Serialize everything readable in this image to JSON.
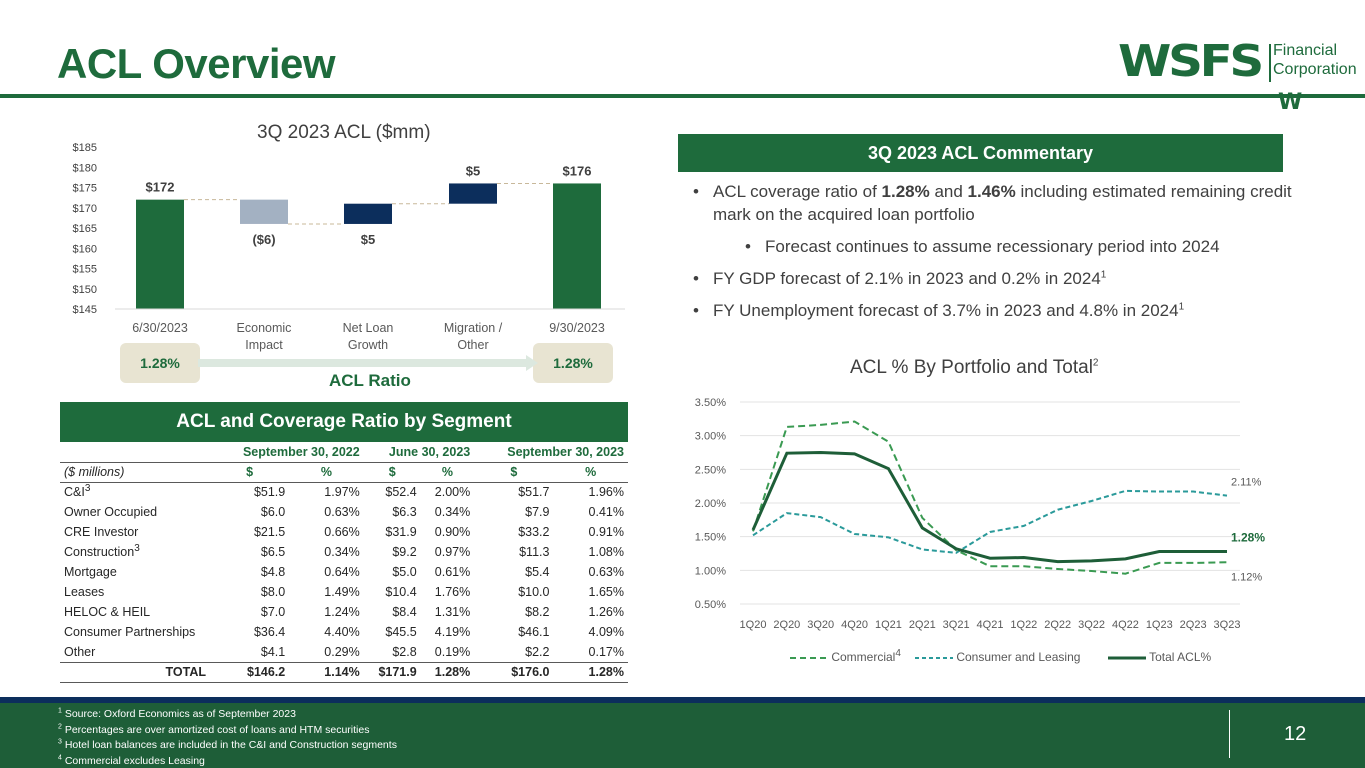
{
  "page": {
    "title": "ACL Overview",
    "page_number": "12",
    "brand_color": "#1e6b3c",
    "navy_color": "#0c2e5c"
  },
  "logo": {
    "word": "WSFS",
    "line1": "Financial",
    "line2": "Corporation",
    "mark": "W"
  },
  "waterfall": {
    "title": "3Q 2023 ACL ($mm)",
    "ratio_start": "1.28%",
    "ratio_end": "1.28%",
    "ratio_label": "ACL Ratio"
  },
  "commentary": {
    "header": "3Q 2023 ACL Commentary",
    "b1_pre": "ACL coverage ratio of ",
    "b1_v1": "1.28%",
    "b1_mid": " and ",
    "b1_v2": "1.46%",
    "b1_post": " including estimated remaining credit mark on the acquired loan portfolio",
    "b2": "Forecast continues to assume recessionary period into 2024",
    "b3": "FY GDP forecast of 2.1% in 2023 and 0.2% in 2024",
    "b3_sup": "1",
    "b4": "FY Unemployment forecast of 3.7% in 2023 and 4.8% in 2024",
    "b4_sup": "1"
  },
  "line_chart_title": "ACL % By Portfolio and Total",
  "line_chart_title_sup": "2",
  "table": {
    "header": "ACL and Coverage Ratio by Segment",
    "periods": [
      "September 30, 2022",
      "June 30, 2023",
      "September 30, 2023"
    ],
    "units_label": "($ millions)",
    "dollar": "$",
    "pct": "%",
    "rows": [
      {
        "label": "C&I",
        "sup": "3",
        "v": [
          "$51.9",
          "1.97%",
          "$52.4",
          "2.00%",
          "$51.7",
          "1.96%"
        ]
      },
      {
        "label": "Owner Occupied",
        "sup": "",
        "v": [
          "$6.0",
          "0.63%",
          "$6.3",
          "0.34%",
          "$7.9",
          "0.41%"
        ]
      },
      {
        "label": "CRE Investor",
        "sup": "",
        "v": [
          "$21.5",
          "0.66%",
          "$31.9",
          "0.90%",
          "$33.2",
          "0.91%"
        ]
      },
      {
        "label": "Construction",
        "sup": "3",
        "v": [
          "$6.5",
          "0.34%",
          "$9.2",
          "0.97%",
          "$11.3",
          "1.08%"
        ]
      },
      {
        "label": "Mortgage",
        "sup": "",
        "v": [
          "$4.8",
          "0.64%",
          "$5.0",
          "0.61%",
          "$5.4",
          "0.63%"
        ]
      },
      {
        "label": "Leases",
        "sup": "",
        "v": [
          "$8.0",
          "1.49%",
          "$10.4",
          "1.76%",
          "$10.0",
          "1.65%"
        ]
      },
      {
        "label": "HELOC & HEIL",
        "sup": "",
        "v": [
          "$7.0",
          "1.24%",
          "$8.4",
          "1.31%",
          "$8.2",
          "1.26%"
        ]
      },
      {
        "label": "Consumer Partnerships",
        "sup": "",
        "v": [
          "$36.4",
          "4.40%",
          "$45.5",
          "4.19%",
          "$46.1",
          "4.09%"
        ]
      },
      {
        "label": "Other",
        "sup": "",
        "v": [
          "$4.1",
          "0.29%",
          "$2.8",
          "0.19%",
          "$2.2",
          "0.17%"
        ]
      }
    ],
    "total": {
      "label": "TOTAL",
      "v": [
        "$146.2",
        "1.14%",
        "$171.9",
        "1.28%",
        "$176.0",
        "1.28%"
      ]
    }
  },
  "footnotes": [
    {
      "n": "1",
      "text": "Source: Oxford Economics as of September 2023"
    },
    {
      "n": "2",
      "text": "Percentages are over amortized cost of loans and HTM securities"
    },
    {
      "n": "3",
      "text": "Hotel loan balances are included in the C&I and Construction segments"
    },
    {
      "n": "4",
      "text": "Commercial excludes Leasing"
    }
  ],
  "chart_data": [
    {
      "type": "bar",
      "subtype": "waterfall",
      "title": "3Q 2023 ACL ($mm)",
      "categories": [
        "6/30/2023",
        "Economic Impact",
        "Net Loan Growth",
        "Migration / Other",
        "9/30/2023"
      ],
      "tick_lines": [
        [
          "6/30/2023"
        ],
        [
          "Economic",
          "Impact"
        ],
        [
          "Net Loan",
          "Growth"
        ],
        [
          "Migration /",
          "Other"
        ],
        [
          "9/30/2023"
        ]
      ],
      "values": [
        172,
        -6,
        5,
        5,
        176
      ],
      "data_labels": [
        "$172",
        "($6)",
        "$5",
        "$5",
        "$176"
      ],
      "bar_colors": [
        "#1e6b3c",
        "#a3b1c2",
        "#0c2e5c",
        "#0c2e5c",
        "#1e6b3c"
      ],
      "ylim": [
        145,
        185
      ],
      "yticks": [
        145,
        150,
        155,
        160,
        165,
        170,
        175,
        180,
        185
      ],
      "ytick_labels": [
        "$145",
        "$150",
        "$155",
        "$160",
        "$165",
        "$170",
        "$175",
        "$180",
        "$185"
      ],
      "grid": false
    },
    {
      "type": "line",
      "title": "ACL % By Portfolio and Total",
      "x": [
        "1Q20",
        "2Q20",
        "3Q20",
        "4Q20",
        "1Q21",
        "2Q21",
        "3Q21",
        "4Q21",
        "1Q22",
        "2Q22",
        "3Q22",
        "4Q22",
        "1Q23",
        "2Q23",
        "3Q23"
      ],
      "ylim": [
        0.5,
        3.5
      ],
      "yticks": [
        0.5,
        1.0,
        1.5,
        2.0,
        2.5,
        3.0,
        3.5
      ],
      "ytick_labels": [
        "0.50%",
        "1.00%",
        "1.50%",
        "2.00%",
        "2.50%",
        "3.00%",
        "3.50%"
      ],
      "grid": true,
      "legend": "bottom",
      "series": [
        {
          "name": "Commercial",
          "name_sup": "4",
          "color": "#3a9a52",
          "style": "dashed",
          "values": [
            1.58,
            3.13,
            3.16,
            3.21,
            2.91,
            1.78,
            1.3,
            1.06,
            1.06,
            1.02,
            0.99,
            0.95,
            1.11,
            1.11,
            1.12
          ],
          "end_label": "1.12%"
        },
        {
          "name": "Consumer and Leasing",
          "name_sup": "",
          "color": "#2a9a9a",
          "style": "dashed",
          "values": [
            1.52,
            1.85,
            1.79,
            1.54,
            1.49,
            1.31,
            1.26,
            1.57,
            1.66,
            1.9,
            2.03,
            2.18,
            2.17,
            2.17,
            2.11
          ],
          "end_label": "2.11%"
        },
        {
          "name": "Total ACL%",
          "name_sup": "",
          "color": "#1e5e38",
          "style": "solid",
          "values": [
            1.6,
            2.74,
            2.75,
            2.73,
            2.51,
            1.63,
            1.32,
            1.18,
            1.19,
            1.13,
            1.14,
            1.17,
            1.28,
            1.28,
            1.28
          ],
          "end_label": "1.28%"
        }
      ]
    }
  ]
}
